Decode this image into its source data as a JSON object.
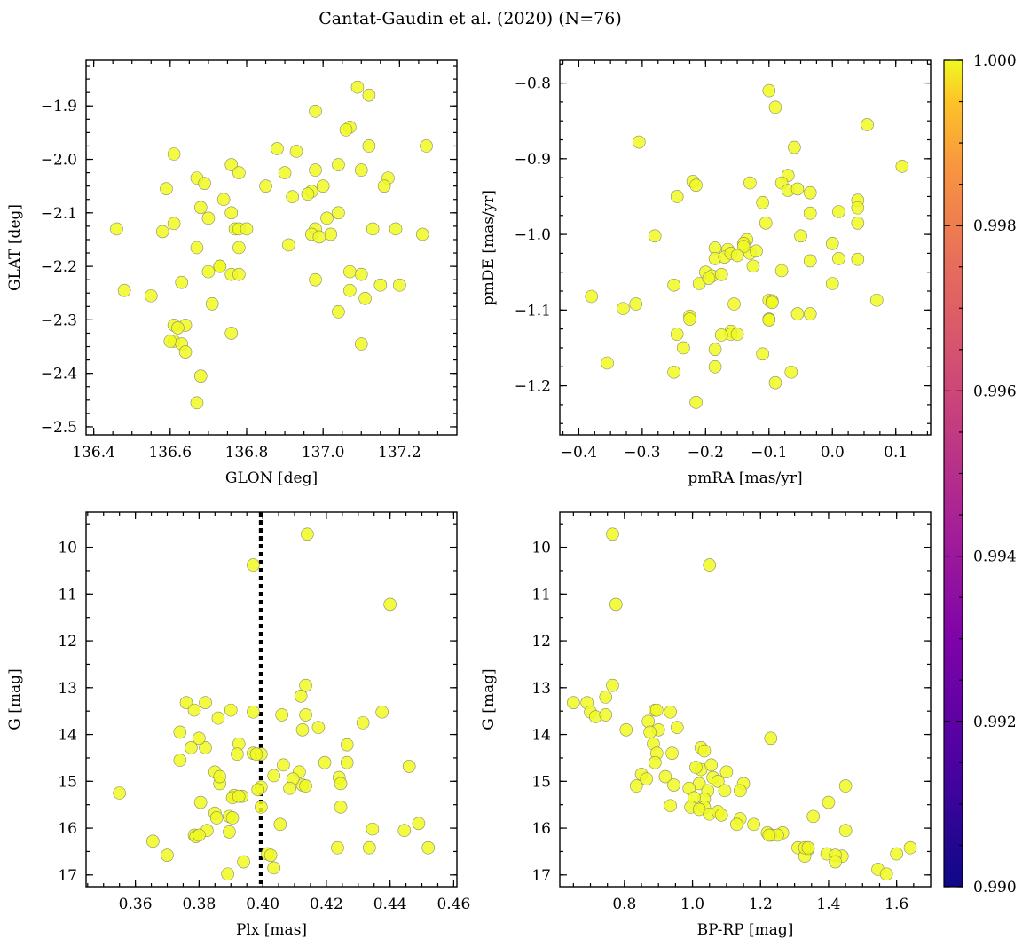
{
  "figure_title": "Cantat-Gaudin et al. (2020) (N=76)",
  "colors": {
    "point": "#f0f921",
    "colorbar_low": "#0d0887",
    "colorbar_mid": "#cc4778",
    "colorbar_high": "#f0f921"
  },
  "colorbar": {
    "min": 0.99,
    "max": 1.0,
    "ticks": [
      "0.990",
      "0.992",
      "0.994",
      "0.996",
      "0.998",
      "1.000"
    ],
    "tick_values": [
      0.99,
      0.992,
      0.994,
      0.996,
      0.998,
      1.0
    ]
  },
  "chart_data": [
    {
      "type": "scatter",
      "id": "sky",
      "xlabel": "GLON [deg]",
      "ylabel": "GLAT [deg]",
      "xlim": [
        136.38,
        137.35
      ],
      "ylim": [
        -2.515,
        -1.815
      ],
      "xticks": [
        136.4,
        136.6,
        136.8,
        137.0,
        137.2
      ],
      "xtick_labels": [
        "136.4",
        "136.6",
        "136.8",
        "137.0",
        "137.2"
      ],
      "yticks": [
        -2.5,
        -2.4,
        -2.3,
        -2.2,
        -2.1,
        -2.0,
        -1.9
      ],
      "ytick_labels": [
        "−2.5",
        "−2.4",
        "−2.3",
        "−2.2",
        "−2.1",
        "−2.0",
        "−1.9"
      ],
      "x": [
        137.09,
        137.12,
        136.98,
        137.07,
        137.06,
        137.12,
        136.88,
        136.93,
        136.61,
        136.76,
        137.1,
        136.78,
        137.27,
        136.9,
        136.67,
        136.69,
        136.59,
        137.17,
        136.85,
        137.16,
        136.97,
        136.92,
        136.96,
        136.98,
        137.04,
        137.04,
        136.74,
        136.68,
        136.76,
        136.7,
        136.77,
        137.01,
        136.98,
        136.97,
        137.13,
        137.19,
        136.61,
        136.46,
        136.58,
        137.02,
        136.99,
        136.78,
        136.78,
        136.67,
        136.91,
        136.73,
        136.7,
        136.76,
        136.78,
        136.63,
        136.48,
        136.55,
        137.07,
        137.1,
        136.98,
        137.15,
        137.2,
        137.07,
        137.11,
        136.71,
        137.04,
        136.61,
        136.64,
        136.61,
        136.76,
        136.6,
        136.63,
        137.1,
        136.64,
        136.68,
        136.67,
        136.8,
        136.73,
        137.0,
        136.62,
        137.26
      ],
      "y": [
        -1.865,
        -1.88,
        -1.91,
        -1.94,
        -1.945,
        -1.975,
        -1.98,
        -1.985,
        -1.99,
        -2.01,
        -2.02,
        -2.025,
        -1.975,
        -2.025,
        -2.035,
        -2.045,
        -2.055,
        -2.035,
        -2.05,
        -2.05,
        -2.06,
        -2.07,
        -2.065,
        -2.02,
        -2.01,
        -2.1,
        -2.075,
        -2.09,
        -2.1,
        -2.11,
        -2.13,
        -2.11,
        -2.13,
        -2.14,
        -2.13,
        -2.13,
        -2.12,
        -2.13,
        -2.135,
        -2.14,
        -2.145,
        -2.13,
        -2.165,
        -2.165,
        -2.16,
        -2.2,
        -2.21,
        -2.215,
        -2.215,
        -2.23,
        -2.245,
        -2.255,
        -2.21,
        -2.215,
        -2.225,
        -2.235,
        -2.235,
        -2.245,
        -2.26,
        -2.27,
        -2.285,
        -2.31,
        -2.31,
        -2.34,
        -2.325,
        -2.34,
        -2.345,
        -2.345,
        -2.36,
        -2.405,
        -2.455,
        -2.13,
        -2.2,
        -2.05,
        -2.315,
        -2.14
      ]
    },
    {
      "type": "scatter",
      "id": "proper-motion",
      "xlabel": "pmRA [mas/yr]",
      "ylabel": "pmDE [mas/yr]",
      "xlim": [
        -0.43,
        0.155
      ],
      "ylim": [
        -1.265,
        -0.77
      ],
      "xticks": [
        -0.4,
        -0.3,
        -0.2,
        -0.1,
        0.0,
        0.1
      ],
      "xtick_labels": [
        "−0.4",
        "−0.3",
        "−0.2",
        "−0.1",
        "0.0",
        "0.1"
      ],
      "yticks": [
        -1.2,
        -1.1,
        -1.0,
        -0.9,
        -0.8
      ],
      "ytick_labels": [
        "−1.2",
        "−1.1",
        "−1.0",
        "−0.9",
        "−0.8"
      ],
      "x": [
        -0.1,
        -0.09,
        -0.305,
        0.055,
        0.11,
        -0.06,
        -0.07,
        -0.08,
        -0.07,
        -0.22,
        -0.055,
        -0.035,
        -0.215,
        -0.13,
        -0.245,
        -0.11,
        0.04,
        0.04,
        -0.035,
        0.01,
        -0.105,
        0.04,
        -0.05,
        -0.28,
        -0.185,
        -0.135,
        -0.14,
        0.0,
        -0.165,
        0.01,
        -0.185,
        -0.035,
        -0.17,
        -0.16,
        -0.13,
        -0.2,
        0.04,
        -0.19,
        -0.175,
        -0.08,
        -0.21,
        0.0,
        -0.38,
        -0.25,
        -0.195,
        -0.125,
        -0.1,
        -0.095,
        -0.1,
        -0.035,
        -0.055,
        -0.31,
        0.07,
        -0.33,
        -0.155,
        -0.225,
        -0.225,
        -0.09,
        -0.16,
        -0.245,
        -0.16,
        -0.175,
        -0.355,
        -0.11,
        -0.185,
        -0.065,
        -0.235,
        -0.095,
        -0.25,
        -0.215,
        -0.185,
        -0.12,
        -0.15,
        -0.14,
        -0.15,
        -0.1
      ],
      "y": [
        -0.81,
        -0.832,
        -0.878,
        -0.855,
        -0.91,
        -0.885,
        -0.922,
        -0.932,
        -0.942,
        -0.93,
        -0.94,
        -0.945,
        -0.935,
        -0.932,
        -0.95,
        -0.958,
        -0.955,
        -0.965,
        -0.972,
        -0.97,
        -0.985,
        -0.985,
        -1.002,
        -1.002,
        -1.018,
        -1.007,
        -1.012,
        -1.012,
        -1.02,
        -1.032,
        -1.032,
        -1.035,
        -1.03,
        -1.025,
        -1.025,
        -1.05,
        -1.033,
        -1.055,
        -1.053,
        -1.048,
        -1.065,
        -1.065,
        -1.082,
        -1.067,
        -1.058,
        -1.042,
        -1.087,
        -1.088,
        -1.112,
        -1.105,
        -1.105,
        -1.092,
        -1.087,
        -1.098,
        -1.092,
        -1.108,
        -1.112,
        -1.196,
        -1.128,
        -1.132,
        -1.132,
        -1.133,
        -1.17,
        -1.158,
        -1.175,
        -1.182,
        -1.15,
        -1.09,
        -1.182,
        -1.222,
        -1.152,
        -1.022,
        -1.132,
        -1.016,
        -1.028,
        -1.113
      ]
    },
    {
      "type": "scatter",
      "id": "plx-g",
      "xlabel": "Plx [mas]",
      "ylabel": "G [mag]",
      "xlim": [
        0.3445,
        0.461
      ],
      "ylim": [
        17.25,
        9.25
      ],
      "y_inverted": true,
      "vline": 0.3995,
      "xticks": [
        0.36,
        0.38,
        0.4,
        0.42,
        0.44,
        0.46
      ],
      "xtick_labels": [
        "0.36",
        "0.38",
        "0.40",
        "0.42",
        "0.44",
        "0.46"
      ],
      "yticks": [
        10,
        11,
        12,
        13,
        14,
        15,
        16,
        17
      ],
      "ytick_labels": [
        "10",
        "11",
        "12",
        "13",
        "14",
        "15",
        "16",
        "17"
      ],
      "x": [
        0.414,
        0.397,
        0.44,
        0.4135,
        0.412,
        0.376,
        0.382,
        0.397,
        0.4375,
        0.3785,
        0.406,
        0.39,
        0.4135,
        0.4315,
        0.386,
        0.4125,
        0.374,
        0.4265,
        0.4175,
        0.3925,
        0.382,
        0.3775,
        0.397,
        0.3995,
        0.392,
        0.38,
        0.374,
        0.4195,
        0.4065,
        0.4265,
        0.385,
        0.4115,
        0.4035,
        0.4125,
        0.424,
        0.446,
        0.3865,
        0.4095,
        0.4085,
        0.3995,
        0.355,
        0.4245,
        0.391,
        0.3985,
        0.3905,
        0.3805,
        0.3935,
        0.4135,
        0.3995,
        0.385,
        0.3895,
        0.3905,
        0.4245,
        0.3855,
        0.4055,
        0.4345,
        0.4015,
        0.4025,
        0.449,
        0.4445,
        0.3785,
        0.379,
        0.3655,
        0.37,
        0.3825,
        0.4335,
        0.4235,
        0.452,
        0.38,
        0.4035,
        0.394,
        0.389,
        0.3895,
        0.3925,
        0.3865,
        0.398
      ],
      "y": [
        9.72,
        10.38,
        11.22,
        12.95,
        13.18,
        13.32,
        13.32,
        13.52,
        13.52,
        13.48,
        13.58,
        13.48,
        13.58,
        13.75,
        13.65,
        13.9,
        13.95,
        14.22,
        13.85,
        14.2,
        14.28,
        14.28,
        14.4,
        14.42,
        14.42,
        14.08,
        14.55,
        14.6,
        14.65,
        14.6,
        14.8,
        14.8,
        14.88,
        15.08,
        14.92,
        14.68,
        15.05,
        14.95,
        15.15,
        15.12,
        15.25,
        15.05,
        15.3,
        15.18,
        15.35,
        15.45,
        15.32,
        15.1,
        15.55,
        15.68,
        15.75,
        15.78,
        15.55,
        15.78,
        15.92,
        16.02,
        16.55,
        16.58,
        15.9,
        16.05,
        16.15,
        16.18,
        16.28,
        16.58,
        16.05,
        16.42,
        16.42,
        16.42,
        16.15,
        16.85,
        16.72,
        16.98,
        16.08,
        15.32,
        14.9,
        14.42
      ]
    },
    {
      "type": "scatter",
      "id": "cmd",
      "xlabel": "BP-RP [mag]",
      "ylabel": "G [mag]",
      "xlim": [
        0.61,
        1.7
      ],
      "ylim": [
        17.25,
        9.25
      ],
      "y_inverted": true,
      "xticks": [
        0.8,
        1.0,
        1.2,
        1.4,
        1.6
      ],
      "xtick_labels": [
        "0.8",
        "1.0",
        "1.2",
        "1.4",
        "1.6"
      ],
      "yticks": [
        10,
        11,
        12,
        13,
        14,
        15,
        16,
        17
      ],
      "ytick_labels": [
        "10",
        "11",
        "12",
        "13",
        "14",
        "15",
        "16",
        "17"
      ],
      "x": [
        0.765,
        1.05,
        0.775,
        0.765,
        0.65,
        0.69,
        0.745,
        0.7,
        0.715,
        0.745,
        0.89,
        0.895,
        0.935,
        0.87,
        0.805,
        0.9,
        0.955,
        0.875,
        1.23,
        0.885,
        1.025,
        0.895,
        0.94,
        1.035,
        0.89,
        1.025,
        1.01,
        1.055,
        1.1,
        1.06,
        0.85,
        0.865,
        0.92,
        0.835,
        0.945,
        1.15,
        1.02,
        1.075,
        1.14,
        0.99,
        1.045,
        1.035,
        1.095,
        1.005,
        1.035,
        0.995,
        1.02,
        0.935,
        1.05,
        1.075,
        1.085,
        1.14,
        1.13,
        1.18,
        1.22,
        1.355,
        1.4,
        1.23,
        1.265,
        1.25,
        1.225,
        1.31,
        1.44,
        1.34,
        1.45,
        1.395,
        1.42,
        1.33,
        1.42,
        1.545,
        1.6,
        1.64,
        1.57,
        1.45,
        1.33,
        1.34
      ],
      "y": [
        9.72,
        10.38,
        11.22,
        12.95,
        13.32,
        13.32,
        13.2,
        13.52,
        13.62,
        13.58,
        13.48,
        13.48,
        13.52,
        13.72,
        13.9,
        13.9,
        13.85,
        13.95,
        14.08,
        14.2,
        14.28,
        14.4,
        14.4,
        14.35,
        14.6,
        14.75,
        14.7,
        14.65,
        14.8,
        14.92,
        14.85,
        14.95,
        14.9,
        15.1,
        15.08,
        15.05,
        15.05,
        15.0,
        15.2,
        15.15,
        15.2,
        15.38,
        15.2,
        15.35,
        15.55,
        15.55,
        15.6,
        15.52,
        15.7,
        15.65,
        15.72,
        15.8,
        15.92,
        15.92,
        16.1,
        15.75,
        15.45,
        16.15,
        16.1,
        16.15,
        16.15,
        16.42,
        16.6,
        16.45,
        16.05,
        16.55,
        16.58,
        16.6,
        16.72,
        16.88,
        16.55,
        16.42,
        16.98,
        15.1,
        16.42,
        16.42
      ]
    }
  ]
}
